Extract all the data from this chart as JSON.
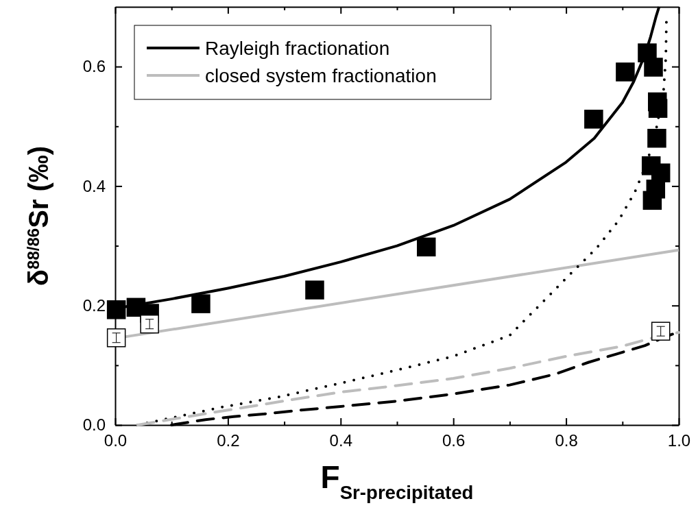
{
  "chart_data": {
    "type": "line",
    "xlabel": "F$_{Sr-precipitated}$",
    "ylabel": "δ$^{88/86}$Sr (‰)",
    "xlim": [
      0,
      1.0
    ],
    "ylim": [
      0,
      0.7
    ],
    "xticks": [
      {
        "value": 0,
        "label": "0.0"
      },
      {
        "value": 0.1,
        "label": null
      },
      {
        "value": 0.2,
        "label": "0.2"
      },
      {
        "value": 0.3,
        "label": null
      },
      {
        "value": 0.4,
        "label": "0.4"
      },
      {
        "value": 0.5,
        "label": null
      },
      {
        "value": 0.6,
        "label": "0.6"
      },
      {
        "value": 0.7,
        "label": null
      },
      {
        "value": 0.8,
        "label": "0.8"
      },
      {
        "value": 0.9,
        "label": null
      },
      {
        "value": 1.0,
        "label": "1.0"
      }
    ],
    "yticks": [
      {
        "value": 0,
        "label": "0.0"
      },
      {
        "value": 0.1,
        "label": null
      },
      {
        "value": 0.2,
        "label": "0.2"
      },
      {
        "value": 0.3,
        "label": null
      },
      {
        "value": 0.4,
        "label": "0.4"
      },
      {
        "value": 0.5,
        "label": null
      },
      {
        "value": 0.6,
        "label": "0.6"
      }
    ],
    "legend": "top left",
    "grid": false,
    "series": [
      {
        "name": "Rayleigh fractionation",
        "color": "#000000",
        "line_style": "solid",
        "x": [
          0,
          0.1,
          0.2,
          0.3,
          0.4,
          0.5,
          0.6,
          0.7,
          0.8,
          0.85,
          0.9,
          0.92,
          0.94,
          0.95,
          0.96,
          0.965
        ],
        "values": [
          0.195,
          0.211,
          0.229,
          0.249,
          0.273,
          0.3,
          0.334,
          0.378,
          0.44,
          0.48,
          0.54,
          0.575,
          0.62,
          0.65,
          0.685,
          0.7
        ]
      },
      {
        "name": "closed system fractionation",
        "color": "#bdbdbd",
        "line_style": "solid",
        "x": [
          0,
          1.0
        ],
        "values": [
          0.145,
          0.293
        ]
      },
      {
        "color": "#000000",
        "line_style": "dotted",
        "x": [
          0.04,
          0.13,
          0.19,
          0.29,
          0.4,
          0.5,
          0.6,
          0.7,
          0.81,
          0.854,
          0.893,
          0.922,
          0.944,
          0.961,
          0.973,
          0.977,
          0.978
        ],
        "values": [
          0,
          0.018,
          0.03,
          0.047,
          0.07,
          0.092,
          0.115,
          0.15,
          0.255,
          0.296,
          0.342,
          0.39,
          0.44,
          0.5,
          0.56,
          0.615,
          0.675
        ]
      },
      {
        "color": "#bdbdbd",
        "line_style": "dashed",
        "x": [
          0.04,
          0.16,
          0.26,
          0.31,
          0.4,
          0.5,
          0.6,
          0.7,
          0.8,
          0.9,
          0.95,
          1.0
        ],
        "values": [
          0,
          0.019,
          0.034,
          0.042,
          0.055,
          0.066,
          0.078,
          0.095,
          0.115,
          0.132,
          0.145,
          0.155
        ]
      },
      {
        "color": "#000000",
        "line_style": "dashed",
        "x": [
          0.1,
          0.16,
          0.21,
          0.27,
          0.32,
          0.4,
          0.5,
          0.6,
          0.7,
          0.78,
          0.84,
          0.89,
          0.94,
          0.98,
          1.0
        ],
        "values": [
          0,
          0.009,
          0.014,
          0.019,
          0.024,
          0.031,
          0.04,
          0.052,
          0.067,
          0.085,
          0.105,
          0.119,
          0.133,
          0.149,
          0.156
        ]
      },
      {
        "type": "scatter",
        "color": "#000000",
        "marker": "square",
        "x": [
          0.002,
          0.037,
          0.061,
          0.152,
          0.354,
          0.552,
          0.849,
          0.905,
          0.944,
          0.955,
          0.962,
          0.963,
          0.961,
          0.951,
          0.968,
          0.959,
          0.953
        ],
        "values": [
          0.193,
          0.197,
          0.187,
          0.203,
          0.226,
          0.298,
          0.512,
          0.591,
          0.623,
          0.599,
          0.541,
          0.53,
          0.48,
          0.434,
          0.422,
          0.395,
          0.376
        ]
      },
      {
        "type": "scatter",
        "color": "#ffffff",
        "marker": "square",
        "x": [
          0.002,
          0.061,
          0.968
        ],
        "values": [
          0.146,
          0.169,
          0.157
        ],
        "errors": [
          0.008,
          0.008,
          0.008
        ]
      }
    ]
  }
}
